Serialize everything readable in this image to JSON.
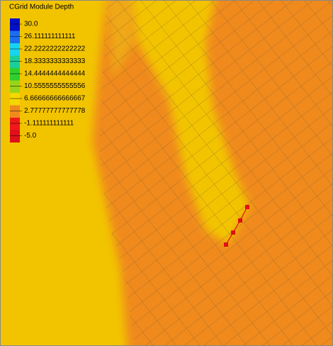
{
  "legend": {
    "title": "CGrid Module Depth",
    "entries": [
      {
        "label": "30.0",
        "color": "#0010c8"
      },
      {
        "label": "26.111111111111",
        "color": "#1a6ef0"
      },
      {
        "label": "22.2222222222222",
        "color": "#18d4f0"
      },
      {
        "label": "18.3333333333333",
        "color": "#1ccf9a"
      },
      {
        "label": "14.4444444444444",
        "color": "#2ecf2e"
      },
      {
        "label": "10.5555555555556",
        "color": "#9ad41a"
      },
      {
        "label": "6.66666666666667",
        "color": "#f5d800"
      },
      {
        "label": "2.77777777777778",
        "color": "#f08a1c"
      },
      {
        "label": "-1.111111111111",
        "color": "#f01818"
      },
      {
        "label": "-5.0",
        "color": "#e0101a"
      }
    ]
  }
}
